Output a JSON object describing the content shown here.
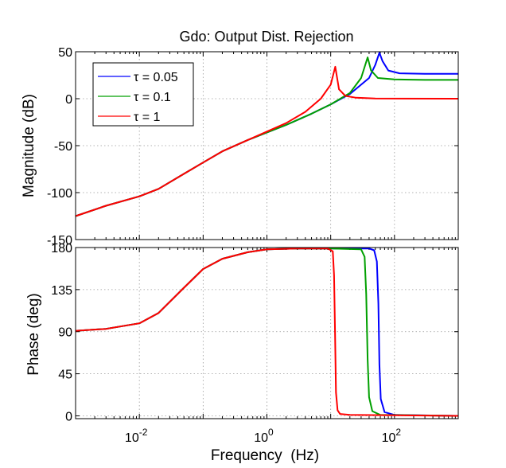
{
  "chart_data": [
    {
      "type": "line",
      "title": "Gdo: Output Dist. Rejection",
      "xlabel": "",
      "ylabel": "Magnitude (dB)",
      "xscale": "log",
      "xlim": [
        0.001,
        1000
      ],
      "ylim": [
        -150,
        50
      ],
      "yticks": [
        {
          "value": 50,
          "label": "50"
        },
        {
          "value": 0,
          "label": "0"
        },
        {
          "value": -50,
          "label": "-50"
        },
        {
          "value": -100,
          "label": "-100"
        },
        {
          "value": -150,
          "label": "-150"
        }
      ],
      "grid": true,
      "legend": {
        "placement": "top-left",
        "entries": [
          {
            "name": "τ = 0.05",
            "color": "#0000ff"
          },
          {
            "name": "τ = 0.1",
            "color": "#00a000"
          },
          {
            "name": "τ = 1",
            "color": "#ff0000"
          }
        ]
      },
      "series": [
        {
          "name": "τ = 0.05",
          "color": "#0000ff",
          "points": [
            [
              0.001,
              -125
            ],
            [
              0.003,
              -114
            ],
            [
              0.01,
              -104
            ],
            [
              0.02,
              -96
            ],
            [
              0.05,
              -80
            ],
            [
              0.1,
              -68
            ],
            [
              0.2,
              -56
            ],
            [
              0.5,
              -44
            ],
            [
              1,
              -36
            ],
            [
              2,
              -28
            ],
            [
              5,
              -16
            ],
            [
              10,
              -6
            ],
            [
              20,
              5
            ],
            [
              40,
              22
            ],
            [
              50,
              36
            ],
            [
              58,
              49
            ],
            [
              65,
              40
            ],
            [
              80,
              30
            ],
            [
              120,
              27
            ],
            [
              300,
              26.5
            ],
            [
              1000,
              26.5
            ]
          ]
        },
        {
          "name": "τ = 0.1",
          "color": "#00a000",
          "points": [
            [
              0.001,
              -125
            ],
            [
              0.003,
              -114
            ],
            [
              0.01,
              -104
            ],
            [
              0.02,
              -96
            ],
            [
              0.05,
              -80
            ],
            [
              0.1,
              -68
            ],
            [
              0.2,
              -56
            ],
            [
              0.5,
              -44
            ],
            [
              1,
              -36
            ],
            [
              2,
              -28
            ],
            [
              5,
              -16
            ],
            [
              10,
              -6
            ],
            [
              20,
              6
            ],
            [
              30,
              22
            ],
            [
              38,
              44
            ],
            [
              43,
              30
            ],
            [
              55,
              22
            ],
            [
              100,
              20.5
            ],
            [
              300,
              20
            ],
            [
              1000,
              20
            ]
          ]
        },
        {
          "name": "τ = 1",
          "color": "#ff0000",
          "points": [
            [
              0.001,
              -125
            ],
            [
              0.003,
              -114
            ],
            [
              0.01,
              -104
            ],
            [
              0.02,
              -96
            ],
            [
              0.05,
              -80
            ],
            [
              0.1,
              -68
            ],
            [
              0.2,
              -56
            ],
            [
              0.5,
              -44
            ],
            [
              1,
              -35
            ],
            [
              2,
              -26
            ],
            [
              4,
              -14
            ],
            [
              7,
              0
            ],
            [
              10,
              15
            ],
            [
              11.8,
              34
            ],
            [
              13.5,
              10
            ],
            [
              17,
              3
            ],
            [
              25,
              1
            ],
            [
              50,
              0.2
            ],
            [
              1000,
              0
            ]
          ]
        }
      ]
    },
    {
      "type": "line",
      "title": "",
      "xlabel": "Frequency  (Hz)",
      "ylabel": "Phase (deg)",
      "xscale": "log",
      "xlim": [
        0.001,
        1000
      ],
      "ylim": [
        -3,
        180
      ],
      "xticks": [
        {
          "value": 0.01,
          "base": "10",
          "exp": "-2"
        },
        {
          "value": 1,
          "base": "10",
          "exp": "0"
        },
        {
          "value": 100,
          "base": "10",
          "exp": "2"
        }
      ],
      "yticks": [
        {
          "value": 180,
          "label": "180"
        },
        {
          "value": 135,
          "label": "135"
        },
        {
          "value": 90,
          "label": "90"
        },
        {
          "value": 45,
          "label": "45"
        },
        {
          "value": 0,
          "label": "0"
        }
      ],
      "grid": true,
      "series": [
        {
          "name": "τ = 0.05",
          "color": "#0000ff",
          "points": [
            [
              0.001,
              91
            ],
            [
              0.003,
              93
            ],
            [
              0.01,
              99
            ],
            [
              0.02,
              110
            ],
            [
              0.05,
              137
            ],
            [
              0.1,
              157
            ],
            [
              0.2,
              168
            ],
            [
              0.5,
              175
            ],
            [
              1,
              178
            ],
            [
              3,
              179
            ],
            [
              10,
              179
            ],
            [
              40,
              179
            ],
            [
              48,
              177
            ],
            [
              53,
              165
            ],
            [
              56,
              120
            ],
            [
              58,
              55
            ],
            [
              61,
              18
            ],
            [
              70,
              4
            ],
            [
              100,
              1
            ],
            [
              1000,
              0
            ]
          ]
        },
        {
          "name": "τ = 0.1",
          "color": "#00a000",
          "points": [
            [
              0.001,
              91
            ],
            [
              0.003,
              93
            ],
            [
              0.01,
              99
            ],
            [
              0.02,
              110
            ],
            [
              0.05,
              137
            ],
            [
              0.1,
              157
            ],
            [
              0.2,
              168
            ],
            [
              0.5,
              175
            ],
            [
              1,
              178
            ],
            [
              3,
              179
            ],
            [
              10,
              179
            ],
            [
              30,
              178
            ],
            [
              34,
              170
            ],
            [
              36,
              130
            ],
            [
              38,
              60
            ],
            [
              40,
              20
            ],
            [
              45,
              5
            ],
            [
              60,
              1
            ],
            [
              1000,
              0
            ]
          ]
        },
        {
          "name": "τ = 1",
          "color": "#ff0000",
          "points": [
            [
              0.001,
              91
            ],
            [
              0.003,
              93
            ],
            [
              0.01,
              99
            ],
            [
              0.02,
              110
            ],
            [
              0.05,
              137
            ],
            [
              0.1,
              157
            ],
            [
              0.2,
              168
            ],
            [
              0.5,
              175
            ],
            [
              1,
              178
            ],
            [
              3,
              179
            ],
            [
              9,
              179
            ],
            [
              10.8,
              176
            ],
            [
              11.3,
              150
            ],
            [
              11.7,
              90
            ],
            [
              12.1,
              25
            ],
            [
              12.8,
              6
            ],
            [
              14,
              2
            ],
            [
              20,
              1
            ],
            [
              1000,
              0
            ]
          ]
        }
      ]
    }
  ]
}
